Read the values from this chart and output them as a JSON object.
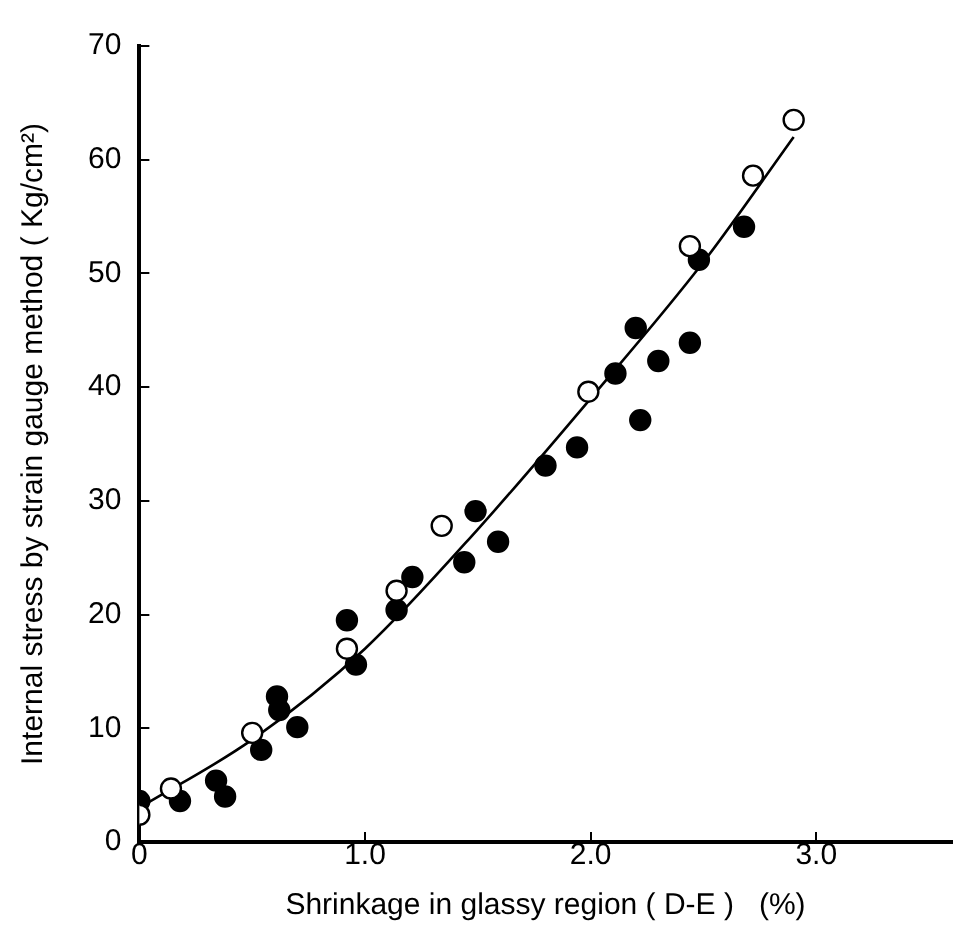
{
  "chart_data": {
    "type": "scatter",
    "xlabel": "Shrinkage in glassy region ( D-E )   (%)",
    "ylabel": "Internal stress by strain gauge method ( Kg/cm²)",
    "xlim": [
      0,
      3.6
    ],
    "ylim": [
      0,
      70
    ],
    "xticks": [
      0,
      {
        "value": 1,
        "label": "1.0"
      },
      {
        "value": 2,
        "label": "2.0"
      },
      {
        "value": 3,
        "label": "3.0"
      }
    ],
    "yticks": [
      0,
      10,
      20,
      30,
      40,
      50,
      60,
      70
    ],
    "grid": false,
    "legend": false,
    "marker": "circle",
    "series": [
      {
        "color": "#ffffff",
        "x": [
          0,
          0.14,
          0.5,
          0.92,
          1.14,
          1.34,
          1.99,
          2.44,
          2.72,
          2.9
        ],
        "values": [
          2.4,
          4.7,
          9.6,
          17,
          22.1,
          27.8,
          39.6,
          52.4,
          58.6,
          63.5
        ]
      },
      {
        "color": "#000000",
        "x": [
          0,
          0.18,
          0.34,
          0.38,
          0.54,
          0.61,
          0.62,
          0.7,
          0.92,
          0.96,
          1.14,
          1.21,
          1.44,
          1.49,
          1.59,
          1.8,
          1.94,
          2.11,
          2.2,
          2.22,
          2.3,
          2.44,
          2.48,
          2.68
        ],
        "values": [
          3.6,
          3.6,
          5.4,
          4,
          8.1,
          12.8,
          11.6,
          10.1,
          19.5,
          15.6,
          20.4,
          23.3,
          24.6,
          29.1,
          26.4,
          33.1,
          34.7,
          41.2,
          45.2,
          37.1,
          42.3,
          43.9,
          51.2,
          54.1
        ]
      },
      {
        "type": "line",
        "color": "#000000",
        "marker": "none",
        "x": [
          0,
          0.5,
          1,
          1.5,
          2,
          2.5,
          2.9
        ],
        "values": [
          3,
          9,
          17,
          27.5,
          39,
          51,
          62
        ]
      }
    ]
  }
}
